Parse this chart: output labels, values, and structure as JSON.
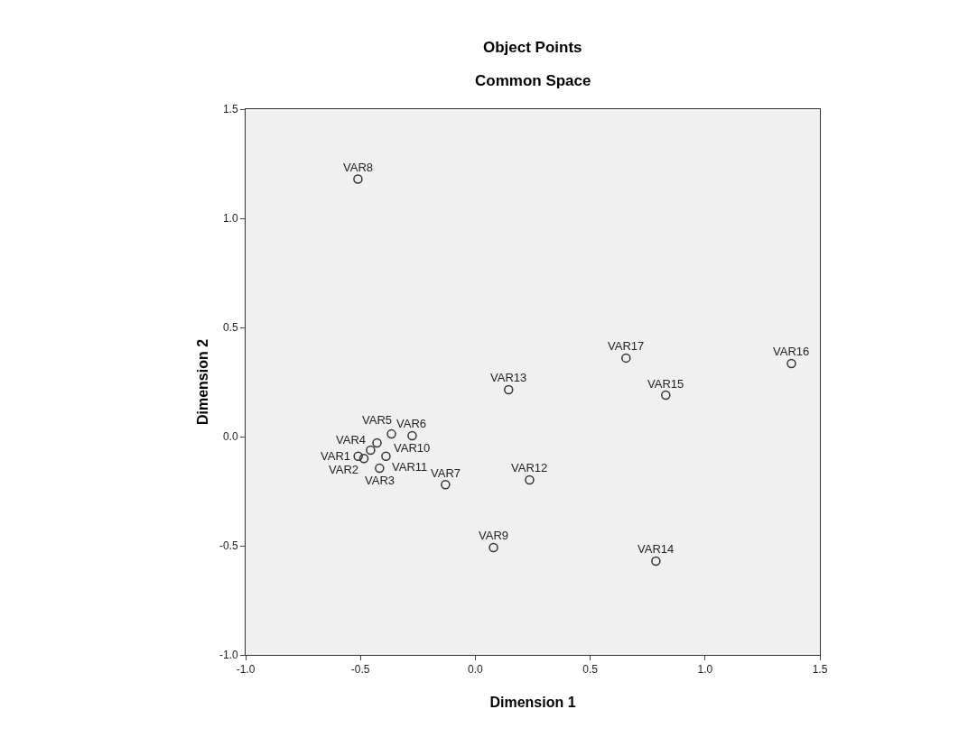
{
  "chart_data": {
    "type": "scatter",
    "title": "Object Points",
    "subtitle": "Common Space",
    "xlabel": "Dimension 1",
    "ylabel": "Dimension 2",
    "series": [
      {
        "color": "#333333",
        "x": [
          -0.51,
          -0.485,
          -0.417,
          -0.456,
          -0.428,
          -0.365,
          -0.13,
          -0.511,
          0.079,
          -0.275,
          -0.389,
          0.236,
          0.145,
          0.786,
          0.829,
          1.376,
          0.656
        ],
        "values": [
          -0.09,
          -0.1,
          -0.145,
          -0.062,
          -0.029,
          0.012,
          -0.22,
          1.18,
          -0.508,
          0.004,
          -0.09,
          -0.198,
          0.215,
          -0.57,
          0.19,
          0.335,
          0.36
        ]
      }
    ],
    "annotations": [
      {
        "text": "VAR1",
        "x": -0.51,
        "y": -0.09
      },
      {
        "text": "VAR2",
        "x": -0.485,
        "y": -0.1
      },
      {
        "text": "VAR3",
        "x": -0.417,
        "y": -0.145
      },
      {
        "text": "VAR4",
        "x": -0.456,
        "y": -0.062
      },
      {
        "text": "VAR5",
        "x": -0.428,
        "y": -0.029
      },
      {
        "text": "VAR6",
        "x": -0.365,
        "y": 0.012
      },
      {
        "text": "VAR7",
        "x": -0.13,
        "y": -0.22
      },
      {
        "text": "VAR8",
        "x": -0.511,
        "y": 1.18
      },
      {
        "text": "VAR9",
        "x": 0.079,
        "y": -0.508
      },
      {
        "text": "VAR10",
        "x": -0.275,
        "y": 0.004
      },
      {
        "text": "VAR11",
        "x": -0.389,
        "y": -0.09
      },
      {
        "text": "VAR12",
        "x": 0.236,
        "y": -0.198
      },
      {
        "text": "VAR13",
        "x": 0.145,
        "y": 0.215
      },
      {
        "text": "VAR14",
        "x": 0.786,
        "y": -0.57
      },
      {
        "text": "VAR15",
        "x": 0.829,
        "y": 0.19
      },
      {
        "text": "VAR16",
        "x": 1.376,
        "y": 0.335
      },
      {
        "text": "VAR17",
        "x": 0.656,
        "y": 0.36
      }
    ],
    "xlim": [
      -1.0,
      1.5
    ],
    "ylim": [
      -1.0,
      1.5
    ],
    "xticks": [
      {
        "value": -1,
        "label": "-1.0"
      },
      {
        "value": -0.5,
        "label": "-0.5"
      },
      {
        "value": 0,
        "label": "0.0"
      },
      {
        "value": 0.5,
        "label": "0.5"
      },
      {
        "value": 1,
        "label": "1.0"
      },
      {
        "value": 1.5,
        "label": "1.5"
      }
    ],
    "yticks": [
      {
        "value": -1,
        "label": "-1.0"
      },
      {
        "value": -0.5,
        "label": "-0.5"
      },
      {
        "value": 0,
        "label": "0.0"
      },
      {
        "value": 0.5,
        "label": "0.5"
      },
      {
        "value": 1,
        "label": "1.0"
      },
      {
        "value": 1.5,
        "label": "1.5"
      }
    ],
    "grid": false,
    "marker": "circle"
  }
}
